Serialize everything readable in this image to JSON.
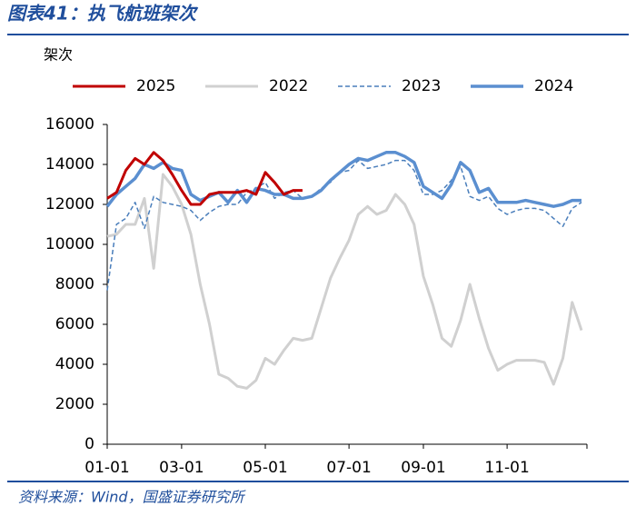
{
  "chart_data": {
    "type": "line",
    "title": "图表41：执飞航班架次",
    "y_label": "架次",
    "source": "资料来源：Wind，国盛证券研究所",
    "categories": [
      "01-01",
      null,
      null,
      null,
      null,
      null,
      null,
      null,
      "03-01",
      null,
      null,
      null,
      null,
      null,
      null,
      null,
      null,
      "05-01",
      null,
      null,
      null,
      null,
      null,
      null,
      null,
      null,
      "07-01",
      null,
      null,
      null,
      null,
      null,
      null,
      null,
      "09-01",
      null,
      null,
      null,
      null,
      null,
      null,
      null,
      null,
      "11-01",
      null,
      null,
      null,
      null,
      null,
      null,
      null,
      null
    ],
    "ylim": [
      0,
      16000
    ],
    "yticks": [
      0,
      2000,
      4000,
      6000,
      8000,
      10000,
      12000,
      14000,
      16000
    ],
    "grid": false,
    "series": [
      {
        "name": "2025",
        "color": "#c00000",
        "style": "solid",
        "width": 3,
        "values": [
          12300,
          12600,
          13700,
          14300,
          14000,
          14600,
          14200,
          13500,
          12700,
          12000,
          12000,
          12500,
          12600,
          12600,
          12600,
          12700,
          12500,
          13600,
          13100,
          12500,
          12700,
          12700,
          null,
          null,
          null,
          null,
          null,
          null,
          null,
          null,
          null,
          null,
          null,
          null,
          null,
          null,
          null,
          null,
          null,
          null,
          null,
          null,
          null,
          null,
          null,
          null,
          null,
          null,
          null,
          null,
          null,
          null
        ]
      },
      {
        "name": "2022",
        "color": "#d0d0d0",
        "style": "solid",
        "width": 3,
        "values": [
          10400,
          10500,
          11000,
          11000,
          12300,
          8800,
          13500,
          12900,
          12000,
          10500,
          8000,
          6000,
          3500,
          3300,
          2900,
          2800,
          3200,
          4300,
          4000,
          4700,
          5300,
          5200,
          5300,
          6800,
          8300,
          9300,
          10200,
          11500,
          11900,
          11500,
          11700,
          12500,
          12000,
          11000,
          8400,
          7000,
          5300,
          4900,
          6200,
          8000,
          6300,
          4800,
          3700,
          4000,
          4200,
          4200,
          4200,
          4100,
          3000,
          4300,
          7100,
          5700
        ]
      },
      {
        "name": "2023",
        "color": "#4a7ebb",
        "style": "dashed",
        "width": 1.5,
        "values": [
          7700,
          11000,
          11300,
          12100,
          10800,
          12400,
          12100,
          12000,
          11900,
          11700,
          11200,
          11600,
          11900,
          12000,
          12000,
          12600,
          12800,
          13100,
          12300,
          12600,
          12700,
          12300,
          12400,
          12800,
          13100,
          13600,
          13700,
          14200,
          13800,
          13900,
          14000,
          14200,
          14200,
          13700,
          12500,
          12500,
          12700,
          13200,
          13900,
          12400,
          12200,
          12400,
          11800,
          11500,
          11700,
          11800,
          11800,
          11700,
          11300,
          10900,
          11800,
          12100
        ]
      },
      {
        "name": "2024",
        "color": "#5b8fd0",
        "style": "solid",
        "width": 3.5,
        "values": [
          11900,
          12500,
          12900,
          13300,
          14000,
          13800,
          14100,
          13800,
          13700,
          12500,
          12200,
          12400,
          12600,
          12100,
          12700,
          12100,
          12800,
          12700,
          12500,
          12500,
          12300,
          12300,
          12400,
          12700,
          13200,
          13600,
          14000,
          14300,
          14200,
          14400,
          14600,
          14600,
          14400,
          14100,
          12900,
          12600,
          12300,
          13000,
          14100,
          13700,
          12600,
          12800,
          12100,
          12100,
          12100,
          12200,
          12100,
          12000,
          11900,
          12000,
          12200,
          12200
        ]
      }
    ],
    "legend_order": [
      0,
      1,
      2,
      3
    ],
    "draw_order": [
      1,
      2,
      3,
      0
    ]
  }
}
